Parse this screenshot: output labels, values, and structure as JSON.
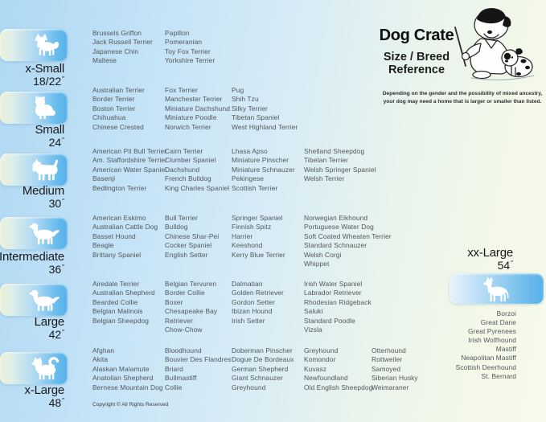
{
  "header": {
    "title": "Dog Crate",
    "subtitle_line1": "Size / Breed",
    "subtitle_line2": "Reference",
    "disclaimer_line1": "Depending on the gender and the possibility of mixed ancestry,",
    "disclaimer_line2": "your dog may need  a home that is larger or smaller than listed."
  },
  "inch_mark": "″",
  "footer": {
    "copyright": "Copyright © All Rights Reserved"
  },
  "colors": {
    "accent_blue": "#54b0e8",
    "pale_green": "#f4f9e9",
    "breed_text": "#52565a"
  },
  "sizes": [
    {
      "label": "x-Small",
      "dim": "18/22",
      "columns": [
        [
          "Brussels Griffon",
          "Jack Russell Terrier",
          "Japanese Chin",
          "Maltese"
        ],
        [
          "Papillon",
          "Pomeranian",
          "Toy Fox Terrier",
          "Yorkshire Terrier"
        ]
      ]
    },
    {
      "label": "Small",
      "dim": "24",
      "columns": [
        [
          "Australian Terrier",
          "Border Terrier",
          "Boston Terrier",
          "Chihuahua",
          "Chinese Crested"
        ],
        [
          "Fox Terrier",
          "Manchester Terrier",
          "Miniature Dachshund",
          "Miniature Poodle",
          "Norwich Terrier"
        ],
        [
          "Pug",
          "Shih Tzu",
          "Silky Terrier",
          "Tibetan Spaniel",
          "West Highland Terrier"
        ]
      ]
    },
    {
      "label": "Medium",
      "dim": "30",
      "columns": [
        [
          "American Pit Bull Terrier",
          "Am. Staffordshire Terrier",
          "American Water Spaniel",
          "Basenji",
          "Bedlington Terrier"
        ],
        [
          "Cairn Terrier",
          "Clumber Spaniel",
          "Dachshund",
          "French Bulldog",
          "King Charles Spaniel"
        ],
        [
          "Lhasa Apso",
          "Miniature Pinscher",
          "Miniature Schnauzer",
          "Pekingese",
          "Scottish Terrier"
        ],
        [
          "Shetland Sheepdog",
          "Tibetan Terrier",
          "Welsh Springer Spaniel",
          "Welsh Terrier"
        ]
      ]
    },
    {
      "label": "Intermediate",
      "dim": "36",
      "columns": [
        [
          "American Eskimo",
          "Australian Cattle Dog",
          "Basset Hound",
          "Beagle",
          "Brittany Spaniel"
        ],
        [
          "Bull Terrier",
          "Bulldog",
          "Chinese Shar-Pei",
          "Cocker Spaniel",
          "English Setter"
        ],
        [
          "Springer Spaniel",
          "Finnish Spitz",
          "Harrier",
          "Keeshond",
          "Kerry Blue Terrier"
        ],
        [
          "Norwegian Elkhound",
          "Portuguese Water Dog",
          "Soft Coated Wheaten Terrier",
          "Standard Schnauzer",
          "Welsh Corgi",
          "Whippet"
        ]
      ]
    },
    {
      "label": "Large",
      "dim": "42",
      "columns": [
        [
          "Airedale Terrier",
          "Australian Shepherd",
          "Bearded Collie",
          "Belgian Malinois",
          "Belgian Sheepdog"
        ],
        [
          "Belgian Tervuren",
          "Border Collie",
          "Boxer",
          "Chesapeake Bay\nRetriever",
          "Chow-Chow"
        ],
        [
          "Dalmatian",
          "Golden Retriever",
          "Gordon Setter",
          "Ibizan Hound",
          "Irish Setter"
        ],
        [
          "Irish Water Spaniel",
          "Labrador Retriever",
          "Rhodesian Ridgeback",
          "Saluki",
          "Standard Poodle",
          "Vizsla"
        ]
      ]
    },
    {
      "label": "x-Large",
      "dim": "48",
      "columns": [
        [
          "Afghan",
          "Akita",
          "Alaskan Malamute",
          "Anatolian Shepherd",
          "Bernese Mountain Dog"
        ],
        [
          "Bloodhound",
          "Bouvier Des Flandres",
          "Briard",
          "Bullmastiff",
          "Collie"
        ],
        [
          "Doberman Pinscher",
          "Dogue De Bordeaux",
          "German Shepherd",
          "Giant Schnauzer",
          "Greyhound"
        ],
        [
          "Greyhound",
          "Komondor",
          "Kuvasz",
          "Newfoundland",
          "Old English Sheepdog"
        ],
        [
          "Otterhound",
          "Rottweiler",
          "Samoyed",
          "Siberian Husky",
          "Weimaraner"
        ]
      ]
    },
    {
      "label": "xx-Large",
      "dim": "54",
      "columns": [
        [
          "Borzoi",
          "Great Dane",
          "Great Pyrenees",
          "Irish Wolfhound",
          "Mastiff",
          "Neapolitan Mastiff",
          "Scottish Deerhound",
          "St. Bernard"
        ]
      ]
    }
  ]
}
